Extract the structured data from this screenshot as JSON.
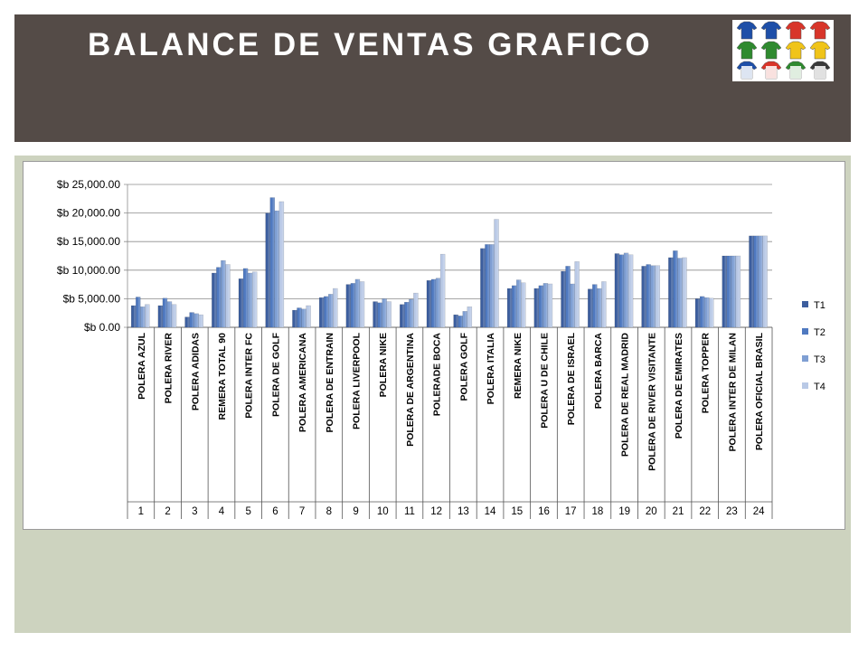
{
  "slide": {
    "title": "BALANCE DE VENTAS GRAFICO",
    "colors": {
      "header": "#544b47",
      "content": "#cdd3bf"
    }
  },
  "logo": {
    "name": "jerseys-logo",
    "colors": [
      [
        "#1e4fa8",
        "#1e4fa8",
        "#d8352a",
        "#d8352a"
      ],
      [
        "#2f8a2f",
        "#2f8a2f",
        "#f0c419",
        "#f0c419"
      ],
      [
        "#1e4fa8",
        "#d8352a",
        "#2f8a2f",
        "#3a3a3a"
      ]
    ]
  },
  "chart_data": {
    "type": "bar",
    "title": "",
    "xlabel": "",
    "ylabel": "",
    "ylim": [
      0,
      25000
    ],
    "y_ticks": [
      "$b 0.00",
      "$b 5,000.00",
      "$b 10,000.00",
      "$b 15,000.00",
      "$b 20,000.00",
      "$b 25,000.00"
    ],
    "y_tick_values": [
      0,
      5000,
      10000,
      15000,
      20000,
      25000
    ],
    "grid": true,
    "legend_position": "right",
    "categories": [
      "POLERA AZUL",
      "POLERA RIVER",
      "POLERA ADIDAS",
      "REMERA TOTAL 90",
      "POLERA INTER FC",
      "POLERA DE GOLF",
      "POLERA AMERICANA",
      "POLERA DE ENTRAIN",
      "POLERA LIVERPOOL",
      "POLERA NIKE",
      "POLERA DE ARGENTINA",
      "POLERADE BOCA",
      "POLERA GOLF",
      "POLERA ITALIA",
      "REMERA NIKE",
      "POLERA U DE CHILE",
      "POLERA DE ISRAEL",
      "POLERA BARCA",
      "POLERA DE REAL MADRID",
      "POLERA DE RIVER VISITANTE",
      "POLERA DE EMIRATES",
      "POLERA TOPPER",
      "POLERA INTER DE MILAN",
      "POLERA OFICIAL BRASIL"
    ],
    "numbers": [
      "1",
      "2",
      "3",
      "4",
      "5",
      "6",
      "7",
      "8",
      "9",
      "10",
      "11",
      "12",
      "13",
      "14",
      "15",
      "16",
      "17",
      "18",
      "19",
      "20",
      "21",
      "22",
      "23",
      "24"
    ],
    "series": [
      {
        "name": "T1",
        "color": "#3c5e9e",
        "values": [
          3800,
          3800,
          1800,
          9500,
          8500,
          20000,
          3000,
          5200,
          7500,
          4500,
          4000,
          8200,
          2200,
          13800,
          6800,
          6800,
          9800,
          6700,
          12900,
          10700,
          12200,
          5000,
          12500,
          16000
        ]
      },
      {
        "name": "T2",
        "color": "#4f79c0",
        "values": [
          5300,
          5100,
          2600,
          10500,
          10300,
          22700,
          3400,
          5400,
          7700,
          4300,
          4400,
          8400,
          2000,
          14500,
          7300,
          7300,
          10700,
          7500,
          12700,
          11000,
          13400,
          5400,
          12500,
          16000
        ]
      },
      {
        "name": "T3",
        "color": "#7f9fd3",
        "values": [
          3600,
          4500,
          2400,
          11700,
          9500,
          20400,
          3200,
          5800,
          8400,
          5000,
          4900,
          8600,
          2800,
          14500,
          8300,
          7700,
          7600,
          6800,
          13000,
          10800,
          12100,
          5200,
          12500,
          16000
        ]
      },
      {
        "name": "T4",
        "color": "#b9c9e6",
        "values": [
          4000,
          4000,
          2200,
          11000,
          9700,
          22000,
          3800,
          6800,
          8000,
          4500,
          6000,
          12800,
          3600,
          18900,
          7800,
          7600,
          11500,
          8000,
          12700,
          10800,
          12200,
          5100,
          12500,
          16000
        ]
      }
    ]
  }
}
